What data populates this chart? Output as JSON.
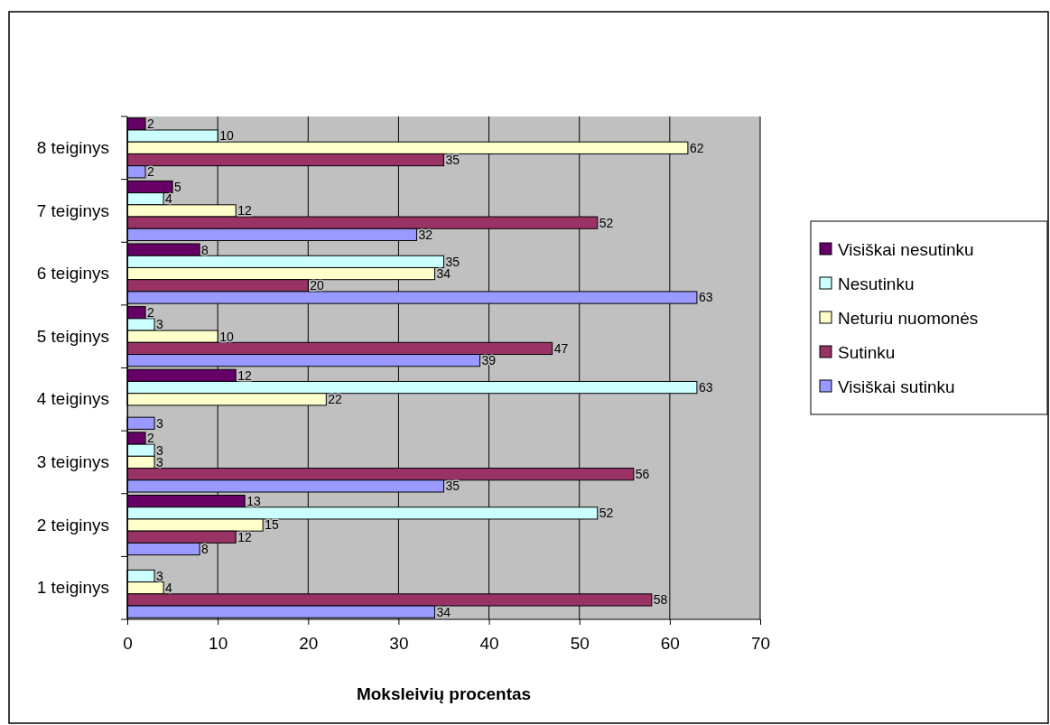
{
  "chart_data": {
    "type": "bar",
    "orientation": "horizontal",
    "xlabel": "Moksleivių procentas",
    "categories": [
      "8 teiginys",
      "7 teiginys",
      "6 teiginys",
      "5 teiginys",
      "4 teiginys",
      "3 teiginys",
      "2 teiginys",
      "1 teiginys"
    ],
    "series": [
      {
        "name": "Visiškai nesutinku",
        "color": "#660066",
        "values": [
          2,
          5,
          8,
          2,
          12,
          2,
          13,
          null
        ]
      },
      {
        "name": "Nesutinku",
        "color": "#ccffff",
        "values": [
          10,
          4,
          35,
          3,
          63,
          3,
          52,
          3
        ]
      },
      {
        "name": "Neturiu nuomonės",
        "color": "#ffffcc",
        "values": [
          62,
          12,
          34,
          10,
          22,
          3,
          15,
          4
        ]
      },
      {
        "name": "Sutinku",
        "color": "#993366",
        "values": [
          35,
          52,
          20,
          47,
          null,
          56,
          12,
          58
        ]
      },
      {
        "name": "Visiškai sutinku",
        "color": "#9999ff",
        "values": [
          2,
          32,
          63,
          39,
          3,
          35,
          8,
          34
        ]
      }
    ],
    "xlim": [
      0,
      70
    ],
    "xticks": [
      0,
      10,
      20,
      30,
      40,
      50,
      60,
      70
    ],
    "grid": "x",
    "legend": "right",
    "data_labels": true
  }
}
